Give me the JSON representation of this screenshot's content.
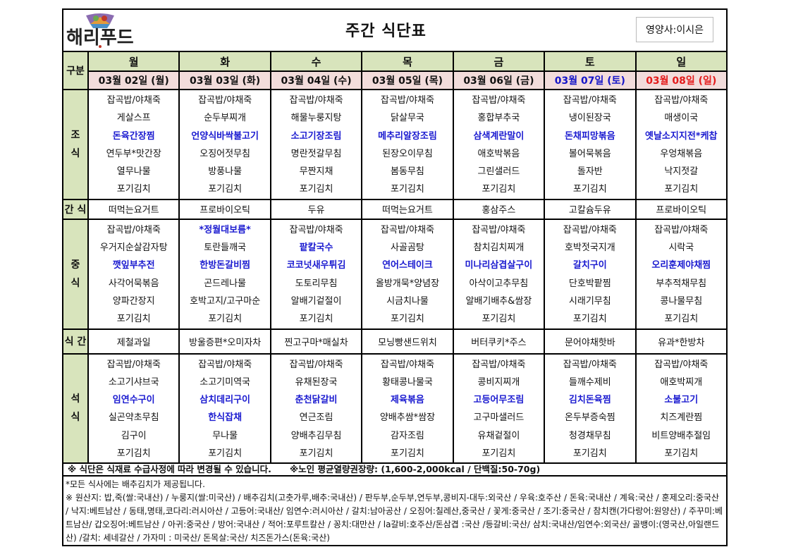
{
  "header": {
    "logo_text": "해리푸드",
    "title": "주간 식단표",
    "dietitian": "영양사:이시은"
  },
  "labels": {
    "category": "구분",
    "breakfast": "조\n식",
    "snack1": "간 식",
    "lunch": "중\n식",
    "snack2": "식 간",
    "dinner": "석\n식"
  },
  "colors": {
    "header_bg": "#d8e4bc",
    "date_bg": "#f2dcdb",
    "highlight": "#1a1ad0",
    "saturday": "#1515c8",
    "sunday": "#e31b1b"
  },
  "days": [
    {
      "day": "월",
      "date": "03월 02일 (월)",
      "breakfast": [
        "잡곡밥/야채죽",
        "게살스프",
        "돈육간장찜",
        "연두부*맛간장",
        "열무나물",
        "포기김치"
      ],
      "breakfast_bold": [
        2
      ],
      "snack1": "떠먹는요거트",
      "lunch": [
        "잡곡밥/야채죽",
        "우거지순살감자탕",
        "깻잎부추전",
        "사각어묵볶음",
        "양파간장지",
        "포기김치"
      ],
      "lunch_bold": [
        2
      ],
      "snack2": "제철과일",
      "dinner": [
        "잡곡밥/야채죽",
        "소고기샤브국",
        "임연수구이",
        "실곤약초무침",
        "김구이",
        "포기김치"
      ],
      "dinner_bold": [
        2
      ]
    },
    {
      "day": "화",
      "date": "03월 03일 (화)",
      "breakfast": [
        "잡곡밥/야채죽",
        "순두부찌개",
        "언양식바싹불고기",
        "오징어젓무침",
        "방풍나물",
        "포기김치"
      ],
      "breakfast_bold": [
        2
      ],
      "snack1": "프로바이오틱",
      "lunch": [
        "*정월대보름*",
        "토란들깨국",
        "한방돈갈비찜",
        "곤드레나물",
        "호박고지/고구마순",
        "포기김치"
      ],
      "lunch_bold": [
        0,
        2
      ],
      "snack2": "방울증편*오미자차",
      "dinner": [
        "잡곡밥/야채죽",
        "소고기미역국",
        "삼치데리구이",
        "한식잡채",
        "무나물",
        "포기김치"
      ],
      "dinner_bold": [
        2,
        3
      ]
    },
    {
      "day": "수",
      "date": "03월 04일 (수)",
      "breakfast": [
        "잡곡밥/야채죽",
        "해물누룽지탕",
        "소고기장조림",
        "명란젓갈무침",
        "무짠지채",
        "포기김치"
      ],
      "breakfast_bold": [
        2
      ],
      "snack1": "두유",
      "lunch": [
        "잡곡밥/야채죽",
        "팥칼국수",
        "코코넛새우튀김",
        "도토리무침",
        "알배기겉절이",
        "포기김치"
      ],
      "lunch_bold": [
        1,
        2
      ],
      "snack2": "찐고구마*매실차",
      "dinner": [
        "잡곡밥/야채죽",
        "유채된장국",
        "춘천닭갈비",
        "연근조림",
        "양배추김무침",
        "포기김치"
      ],
      "dinner_bold": [
        2
      ]
    },
    {
      "day": "목",
      "date": "03월 05일 (목)",
      "breakfast": [
        "잡곡밥/야채죽",
        "닭살무국",
        "메추리알장조림",
        "된장오이무침",
        "봄동무침",
        "포기김치"
      ],
      "breakfast_bold": [
        2
      ],
      "snack1": "떠먹는요거트",
      "lunch": [
        "잡곡밥/야채죽",
        "사골곰탕",
        "연어스테이크",
        "올방개묵*양념장",
        "시금치나물",
        "포기김치"
      ],
      "lunch_bold": [
        2
      ],
      "snack2": "모닝빵샌드위치",
      "dinner": [
        "잡곡밥/야채죽",
        "황태콩나물국",
        "제육볶음",
        "양배추쌈*쌈장",
        "감자조림",
        "포기김치"
      ],
      "dinner_bold": [
        2
      ]
    },
    {
      "day": "금",
      "date": "03월 06일 (금)",
      "breakfast": [
        "잡곡밥/야채죽",
        "홍합부추국",
        "삼색계란말이",
        "애호박볶음",
        "그린샐러드",
        "포기김치"
      ],
      "breakfast_bold": [
        2
      ],
      "snack1": "홍삼주스",
      "lunch": [
        "잡곡밥/야채죽",
        "참치김치찌개",
        "미나리삼겹살구이",
        "아삭이고추무침",
        "알배기배추&쌈장",
        "포기김치"
      ],
      "lunch_bold": [
        2
      ],
      "snack2": "버터쿠키*주스",
      "dinner": [
        "잡곡밥/야채죽",
        "콩비지찌개",
        "고등어무조림",
        "고구마샐러드",
        "유채겉절이",
        "포기김치"
      ],
      "dinner_bold": [
        2
      ]
    },
    {
      "day": "토",
      "date": "03월 07일 (토)",
      "breakfast": [
        "잡곡밥/야채죽",
        "냉이된장국",
        "돈채피망볶음",
        "볼어묵볶음",
        "돌자반",
        "포기김치"
      ],
      "breakfast_bold": [
        2
      ],
      "snack1": "고칼슘두유",
      "lunch": [
        "잡곡밥/야채죽",
        "호박젓국지개",
        "갈치구이",
        "단호박팥찜",
        "시래기무침",
        "포기김치"
      ],
      "lunch_bold": [
        2
      ],
      "snack2": "문어야채핫바",
      "dinner": [
        "잡곡밥/야채죽",
        "들깨수제비",
        "김치돈육찜",
        "온두부증숙찜",
        "청경채무침",
        "포기김치"
      ],
      "dinner_bold": [
        2
      ]
    },
    {
      "day": "일",
      "date": "03월 08일 (일)",
      "breakfast": [
        "잡곡밥/야채죽",
        "매생이국",
        "옛날소지지전*케찹",
        "우엉채볶음",
        "낙지젓갈",
        "포기김치"
      ],
      "breakfast_bold": [
        2
      ],
      "snack1": "프로바이오틱",
      "lunch": [
        "잡곡밥/야채죽",
        "시락국",
        "오리훈제야채찜",
        "부추적채무침",
        "콩나물무침",
        "포기김치"
      ],
      "lunch_bold": [
        2
      ],
      "snack2": "유과*한방차",
      "dinner": [
        "잡곡밥/야채죽",
        "애호박찌개",
        "소불고기",
        "치즈계란찜",
        "비트양배추절임",
        "포기김치"
      ],
      "dinner_bold": [
        2
      ]
    }
  ],
  "notice": "※ 식단은 식재료 수급사정에 따라 변경될 수 있습니다.      ※노인 평균열량권장량: (1,600-2,000kcal / 단백질:50-70g)",
  "footer": {
    "kimchi_note": "*모든 식사에는 배추김치가 제공됩니다.",
    "origin": "※ 원산지: 밥,죽(쌀:국내산) / 누룽지(쌀:미국산) / 배추김치(고춧가루,배추:국내산) / 판두부,순두부,연두부,콩비지-대두:외국산 / 우육:호주산 / 돈육:국내산 / 계육:국산 / 훈제오리:중국산 / 낙지:베트남산 / 동태,명태,코다리:러시아산 / 고등어:국내산/ 임연수:러시아산 / 갈치:남아공산 / 오징어:칠레산,중국산 / 꽃게:중국산 / 조기:중국산 / 참치캔(가다랑어:원양산) / 주꾸미:베트남산/ 갑오징어:베트남산 / 아귀:중국산 / 방어:국내산 / 적어:포루트칼산 / 꽁치:대만산 / la갈비:호주산/돈삼겹 :국산 /등갈비:국산/ 삼치:국내산/임연수:외국산/ 골뱅이:(영국산,아일랜드산) /갈치: 세네갈산 / 가자미 : 미국산/ 돈목살:국산/ 치즈돈가스(돈육:국산)"
  }
}
